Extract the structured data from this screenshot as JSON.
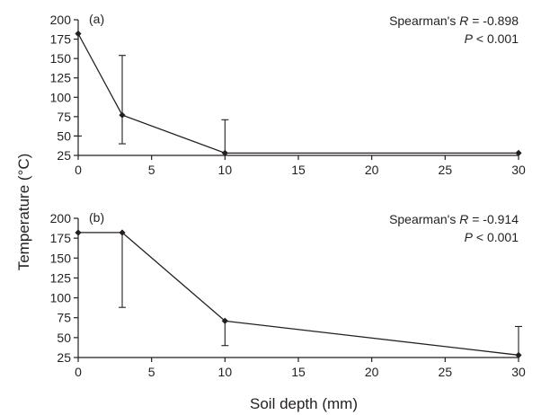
{
  "chart_data": {
    "shared": {
      "ylabel": "Temperature (°C)",
      "xlabel": "Soil depth (mm)",
      "x_ticks": [
        "0",
        "5",
        "10",
        "15",
        "20",
        "25",
        "30"
      ],
      "y_ticks": [
        "25",
        "50",
        "75",
        "100",
        "125",
        "150",
        "175",
        "200"
      ],
      "xlim": [
        0,
        30
      ],
      "ylim": [
        25,
        200
      ]
    },
    "panels": [
      {
        "type": "line",
        "panel_label": "(a)",
        "stat": {
          "prefix": "Spearman's ",
          "symbol": "R",
          "rest": " = -0.898"
        },
        "p_value": {
          "symbol": "P",
          "rest": " < 0.001"
        },
        "x": [
          0,
          3,
          10,
          30
        ],
        "y": [
          182,
          77,
          28,
          28
        ],
        "error_high": [
          182,
          154,
          71,
          28
        ],
        "error_low": [
          50,
          40,
          28,
          28
        ]
      },
      {
        "type": "line",
        "panel_label": "(b)",
        "stat": {
          "prefix": "Spearman's ",
          "symbol": "R",
          "rest": " = -0.914"
        },
        "p_value": {
          "symbol": "P",
          "rest": " < 0.001"
        },
        "x": [
          0,
          3,
          10,
          30
        ],
        "y": [
          182,
          182,
          71,
          28
        ],
        "error_high": [
          182,
          182,
          71,
          64
        ],
        "error_low": [
          182,
          88,
          40,
          28
        ]
      }
    ]
  }
}
